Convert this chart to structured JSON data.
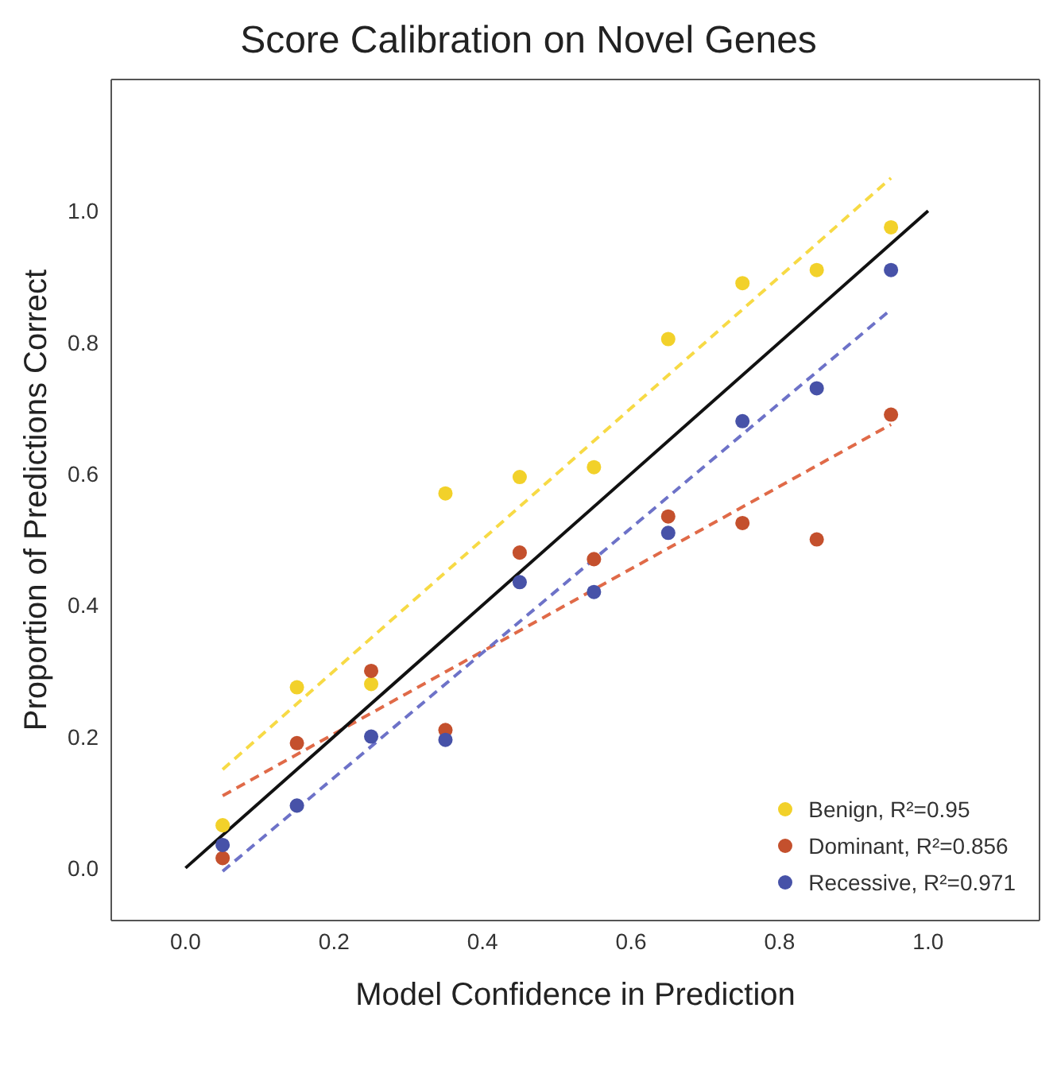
{
  "chart_data": {
    "type": "scatter",
    "title": "Score Calibration on Novel Genes",
    "xlabel": "Model Confidence in Prediction",
    "ylabel": "Proportion of Predictions Correct",
    "x": [
      0.05,
      0.15,
      0.25,
      0.35,
      0.45,
      0.55,
      0.65,
      0.75,
      0.85,
      0.95
    ],
    "series": [
      {
        "name": "Benign, R²=0.95",
        "color": "#f2d12a",
        "values": [
          0.065,
          0.275,
          0.28,
          0.57,
          0.595,
          0.61,
          0.805,
          0.89,
          0.91,
          0.975
        ]
      },
      {
        "name": "Dominant, R²=0.856",
        "color": "#c4502d",
        "values": [
          0.015,
          0.19,
          0.3,
          0.21,
          0.48,
          0.47,
          0.535,
          0.525,
          0.5,
          0.69
        ]
      },
      {
        "name": "Recessive, R²=0.971",
        "color": "#4752a8",
        "values": [
          0.035,
          0.095,
          0.2,
          0.195,
          0.435,
          0.42,
          0.51,
          0.68,
          0.73,
          0.91
        ]
      },
      {
        "type": "line",
        "color": "#f7da45",
        "x": [
          0.05,
          0.95
        ],
        "values": [
          0.15,
          1.05
        ],
        "line_style": "dashed",
        "marker": "none"
      },
      {
        "type": "line",
        "color": "#e06a48",
        "x": [
          0.05,
          0.95
        ],
        "values": [
          0.11,
          0.675
        ],
        "line_style": "dashed",
        "marker": "none"
      },
      {
        "type": "line",
        "color": "#6d72c8",
        "x": [
          0.05,
          0.95
        ],
        "values": [
          -0.005,
          0.85
        ],
        "line_style": "dashed",
        "marker": "none"
      },
      {
        "type": "line",
        "color": "#111111",
        "x": [
          0,
          1
        ],
        "values": [
          0,
          1
        ],
        "line_style": "solid",
        "marker": "none"
      }
    ],
    "xlim": [
      -0.1,
      1.15
    ],
    "ylim": [
      -0.08,
      1.2
    ],
    "xticks": [
      {
        "value": 0,
        "label": "0.0"
      },
      0.2,
      0.4,
      0.6,
      0.8,
      {
        "value": 1,
        "label": "1.0"
      }
    ],
    "yticks": [
      {
        "value": 0,
        "label": "0.0"
      },
      0.2,
      0.4,
      0.6,
      0.8,
      {
        "value": 1,
        "label": "1.0"
      }
    ],
    "grid": false,
    "legend": "bottom right",
    "marker": "circle"
  }
}
